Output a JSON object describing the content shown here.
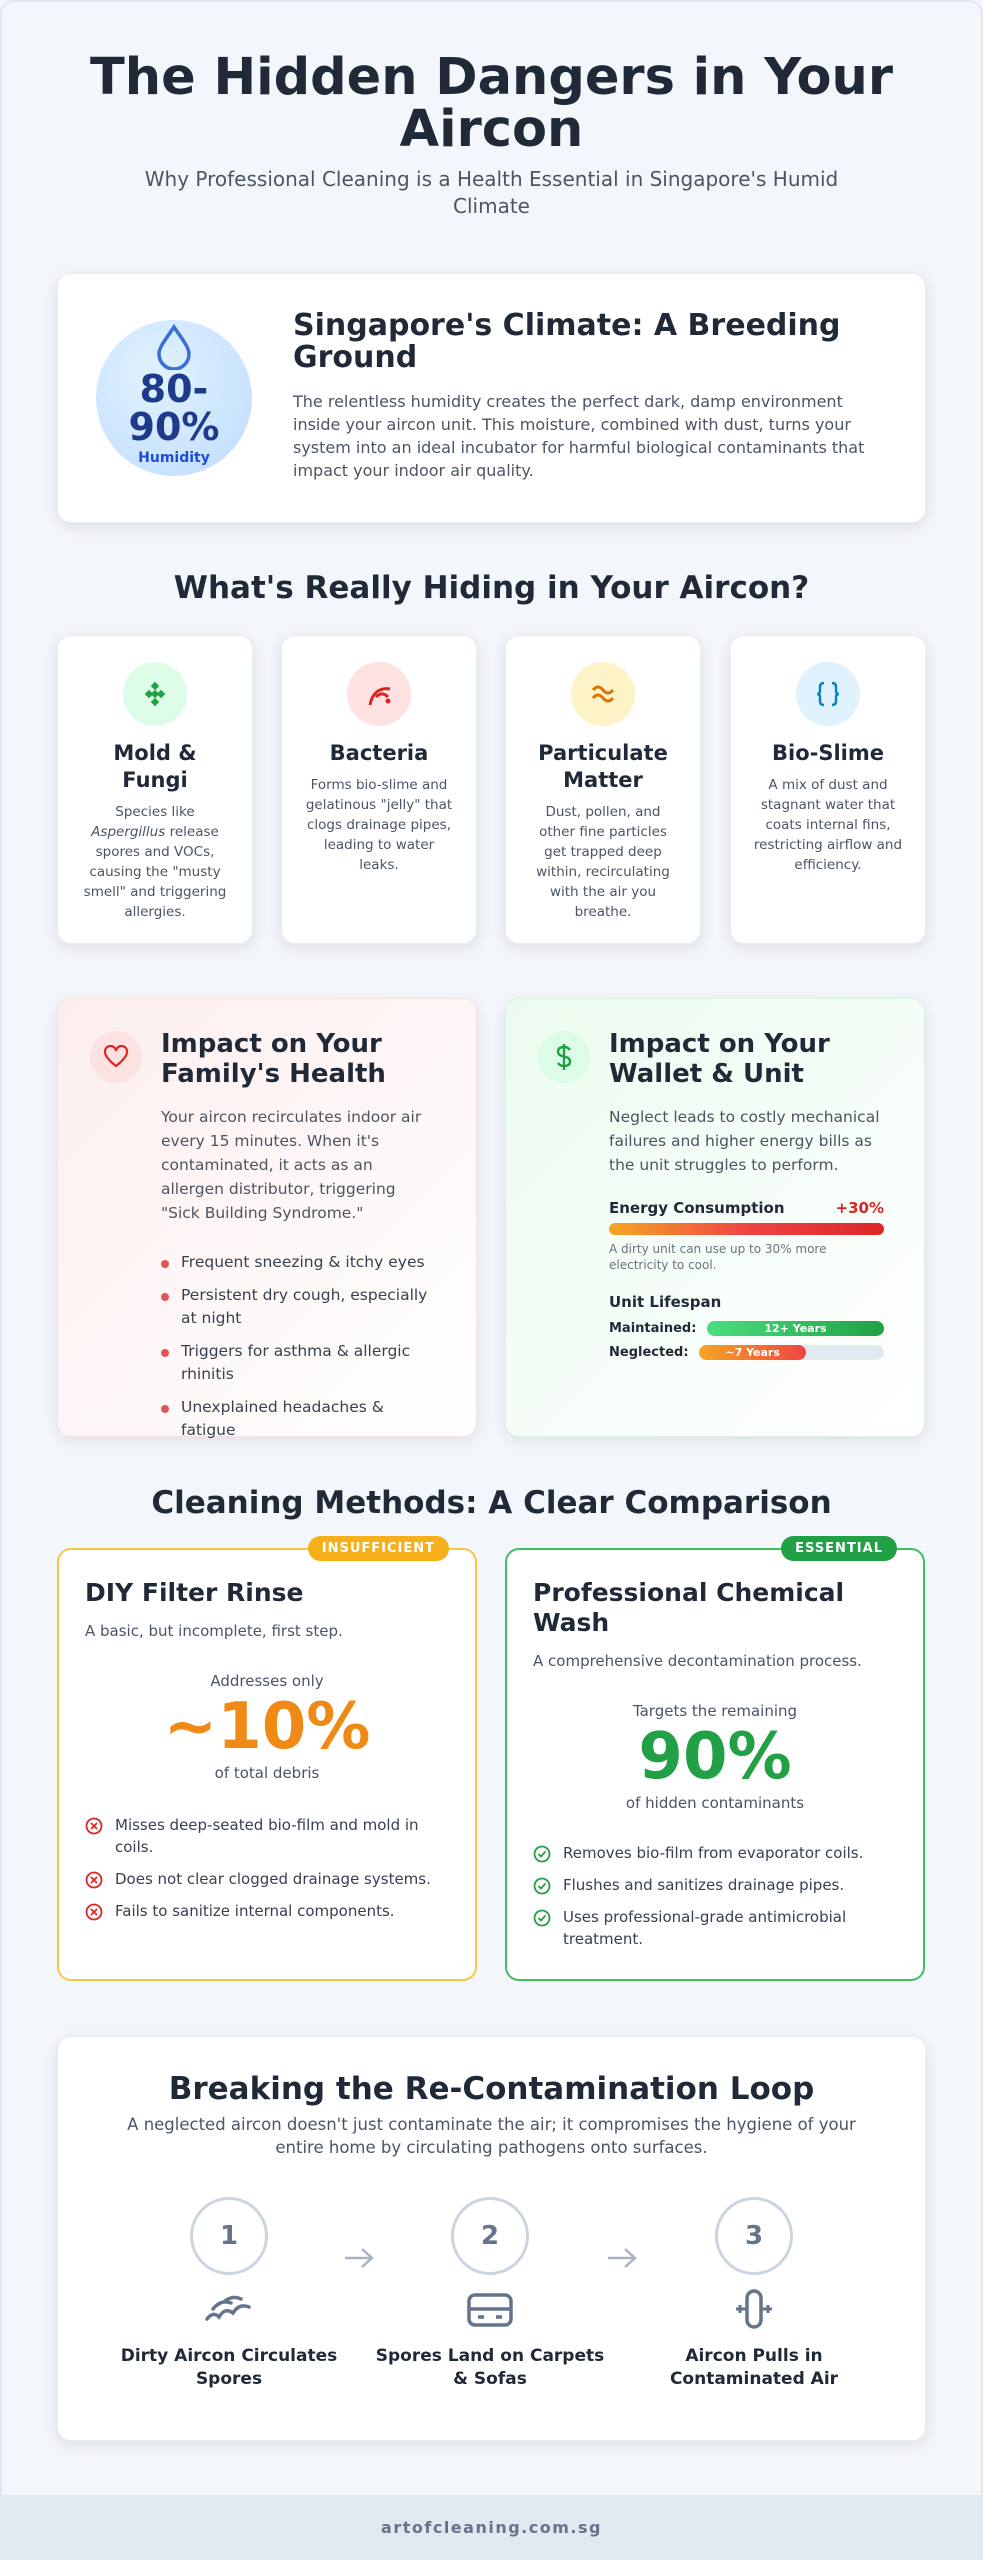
{
  "header": {
    "title": "The Hidden Dangers in Your Aircon",
    "subtitle": "Why Professional Cleaning is a Health Essential in Singapore's Humid Climate"
  },
  "climate": {
    "stat": "80-90%",
    "stat_label": "Humidity",
    "title": "Singapore's Climate: A Breeding Ground",
    "body": "The relentless humidity creates the perfect dark, damp environment inside your aircon unit. This moisture, combined with dust, turns your system into an ideal incubator for harmful biological contaminants that impact your indoor air quality."
  },
  "hiding": {
    "title": "What's Really Hiding in Your Aircon?",
    "cards": [
      {
        "title": "Mold & Fungi",
        "body_pre": "Species like",
        "body_em": "Aspergillus",
        "body_post": "release spores and VOCs, causing the \"musty smell\" and triggering allergies."
      },
      {
        "title": "Bacteria",
        "body": "Forms bio-slime and gelatinous \"jelly\" that clogs drainage pipes, leading to water leaks."
      },
      {
        "title": "Particulate Matter",
        "body": "Dust, pollen, and other fine particles get trapped deep within, recirculating with the air you breathe."
      },
      {
        "title": "Bio-Slime",
        "body": "A mix of dust and stagnant water that coats internal fins, restricting airflow and efficiency."
      }
    ]
  },
  "health": {
    "title": "Impact on Your Family's Health",
    "body": "Your aircon recirculates indoor air every 15 minutes. When it's contaminated, it acts as an allergen distributor, triggering \"Sick Building Syndrome.\"",
    "items": [
      "Frequent sneezing & itchy eyes",
      "Persistent dry cough, especially at night",
      "Triggers for asthma & allergic rhinitis",
      "Unexplained headaches & fatigue"
    ]
  },
  "wallet": {
    "title": "Impact on Your Wallet & Unit",
    "body": "Neglect leads to costly mechanical failures and higher energy bills as the unit struggles to perform.",
    "energy_label": "Energy Consumption",
    "energy_value": "+30%",
    "energy_note": "A dirty unit can use up to 30% more electricity to cool.",
    "lifespan_title": "Unit Lifespan",
    "maintained_label": "Maintained:",
    "maintained_value": "12+ Years",
    "neglected_label": "Neglected:",
    "neglected_value": "~7 Years"
  },
  "methods": {
    "title": "Cleaning Methods: A Clear Comparison",
    "diy": {
      "badge": "INSUFFICIENT",
      "title": "DIY Filter Rinse",
      "subtitle": "A basic, but incomplete, first step.",
      "lead": "Addresses only",
      "stat": "~10%",
      "stat_note": "of total debris",
      "items": [
        "Misses deep-seated bio-film and mold in coils.",
        "Does not clear clogged drainage systems.",
        "Fails to sanitize internal components."
      ]
    },
    "pro": {
      "badge": "ESSENTIAL",
      "title": "Professional Chemical Wash",
      "subtitle": "A comprehensive decontamination process.",
      "lead": "Targets the remaining",
      "stat": "90%",
      "stat_note": "of hidden contaminants",
      "items": [
        "Removes bio-film from evaporator coils.",
        "Flushes and sanitizes drainage pipes.",
        "Uses professional-grade antimicrobial treatment."
      ]
    }
  },
  "loop": {
    "title": "Breaking the Re-Contamination Loop",
    "body": "A neglected aircon doesn't just contaminate the air; it compromises the hygiene of your entire home by circulating pathogens onto surfaces.",
    "steps": [
      {
        "number": "1",
        "label": "Dirty Aircon Circulates Spores"
      },
      {
        "number": "2",
        "label": "Spores Land on Carpets & Sofas"
      },
      {
        "number": "3",
        "label": "Aircon Pulls in Contaminated Air"
      }
    ]
  },
  "footer": {
    "text": "artofcleaning.com.sg"
  }
}
